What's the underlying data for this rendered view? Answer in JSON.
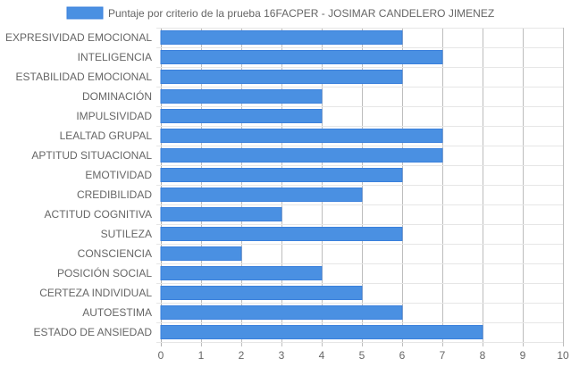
{
  "chart_data": {
    "type": "bar",
    "orientation": "horizontal",
    "categories": [
      "EXPRESIVIDAD EMOCIONAL",
      "INTELIGENCIA",
      "ESTABILIDAD EMOCIONAL",
      "DOMINACIÓN",
      "IMPULSIVIDAD",
      "LEALTAD GRUPAL",
      "APTITUD SITUACIONAL",
      "EMOTIVIDAD",
      "CREDIBILIDAD",
      "ACTITUD COGNITIVA",
      "SUTILEZA",
      "CONSCIENCIA",
      "POSICIÓN SOCIAL",
      "CERTEZA INDIVIDUAL",
      "AUTOESTIMA",
      "ESTADO DE ANSIEDAD"
    ],
    "series": [
      {
        "name": "Puntaje por criterio de la prueba 16FACPER - JOSIMAR CANDELERO JIMENEZ",
        "values": [
          6,
          7,
          6,
          4,
          4,
          7,
          7,
          6,
          5,
          3,
          6,
          2,
          4,
          5,
          6,
          8
        ],
        "color": "#4a90e2",
        "border_color": "#3a80dc"
      }
    ],
    "xlim": [
      0,
      10
    ],
    "x_ticks": [
      "0",
      "1",
      "2",
      "3",
      "4",
      "5",
      "6",
      "7",
      "8",
      "9",
      "10"
    ],
    "grid": true,
    "legend_position": "top"
  }
}
